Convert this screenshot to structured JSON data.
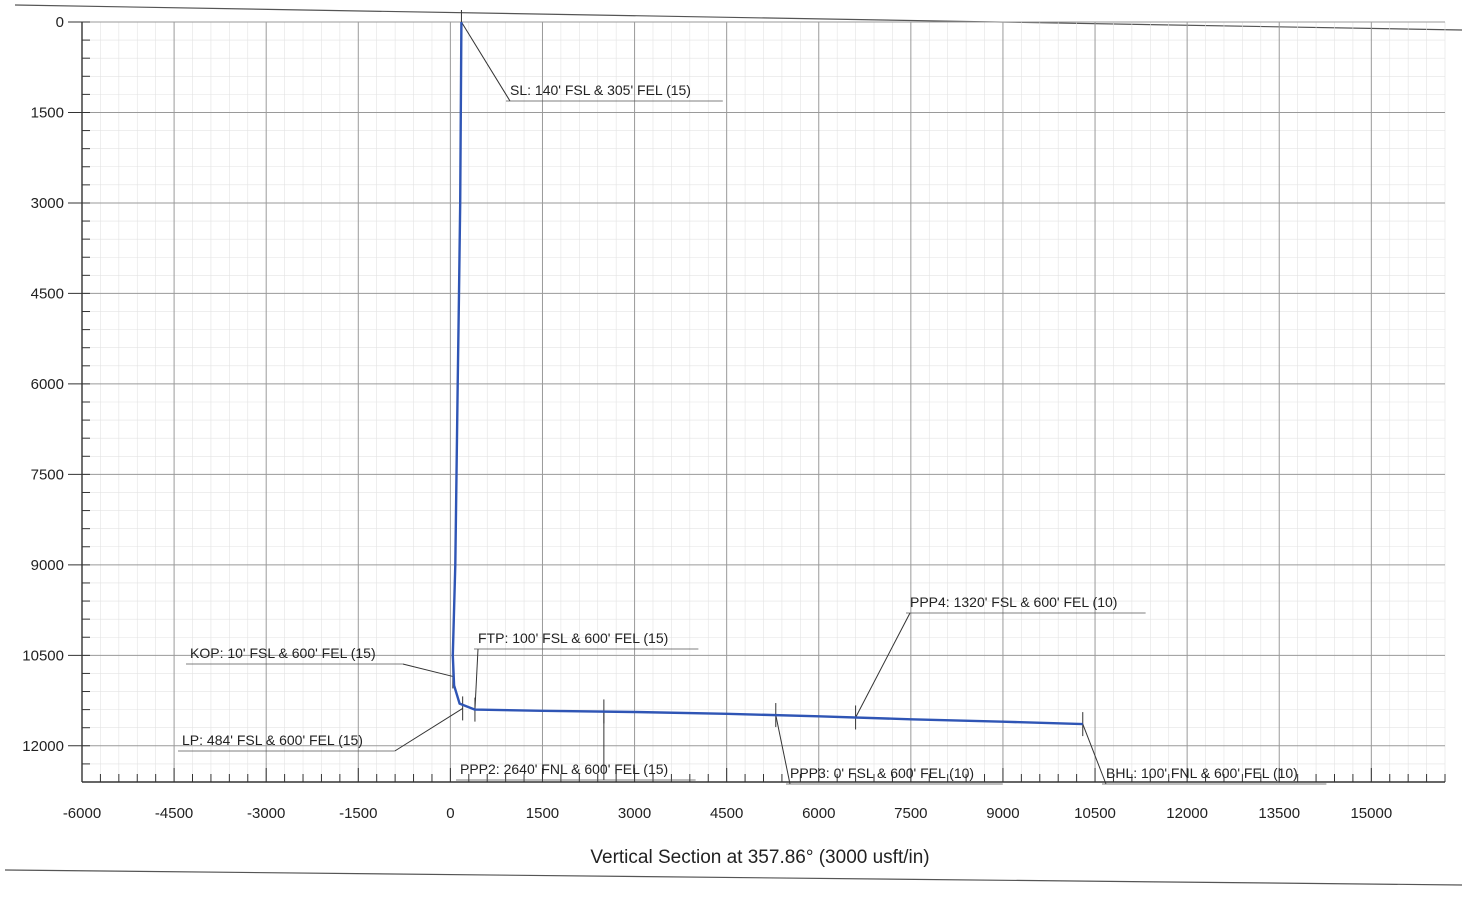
{
  "chart_data": {
    "type": "line",
    "xlabel": "Vertical Section at 357.86° (3000 usft/in)",
    "x_ticks": [
      "-6000",
      "-4500",
      "-3000",
      "-1500",
      "0",
      "1500",
      "3000",
      "4500",
      "6000",
      "7500",
      "9000",
      "10500",
      "12000",
      "13500",
      "15000"
    ],
    "y_ticks": [
      "0",
      "1500",
      "3000",
      "4500",
      "6000",
      "7500",
      "9000",
      "10500",
      "12000"
    ],
    "xlim": [
      -6000,
      16200
    ],
    "ylim": [
      0,
      12600
    ],
    "grid": true,
    "series": [
      {
        "color": "#2f55b5",
        "points": [
          [
            180,
            0
          ],
          [
            170,
            1500
          ],
          [
            160,
            3000
          ],
          [
            140,
            4500
          ],
          [
            120,
            6000
          ],
          [
            100,
            7500
          ],
          [
            80,
            9000
          ],
          [
            40,
            10500
          ],
          [
            60,
            11000
          ],
          [
            150,
            11300
          ],
          [
            400,
            11400
          ],
          [
            1500,
            11420
          ],
          [
            3000,
            11440
          ],
          [
            4500,
            11470
          ],
          [
            6000,
            11510
          ],
          [
            7500,
            11560
          ],
          [
            9000,
            11600
          ],
          [
            10300,
            11640
          ]
        ]
      }
    ],
    "annotations": [
      {
        "text": "SL: 140' FSL & 305' FEL (15)",
        "x": 180,
        "y": 0
      },
      {
        "text": "KOP: 10' FSL & 600' FEL (15)",
        "x": 40,
        "y": 10850
      },
      {
        "text": "FTP: 100' FSL & 600' FEL (15)",
        "x": 400,
        "y": 11400
      },
      {
        "text": "LP: 484' FSL & 600' FEL (15)",
        "x": 200,
        "y": 11380
      },
      {
        "text": "PPP2: 2640' FNL & 600' FEL (15)",
        "x": 2500,
        "y": 11430
      },
      {
        "text": "PPP3: 0' FSL & 600' FEL (10)",
        "x": 5300,
        "y": 11490
      },
      {
        "text": "PPP4: 1320' FSL & 600' FEL (10)",
        "x": 6600,
        "y": 11530
      },
      {
        "text": "BHL: 100' FNL & 600' FEL (10)",
        "x": 10300,
        "y": 11640
      }
    ]
  }
}
